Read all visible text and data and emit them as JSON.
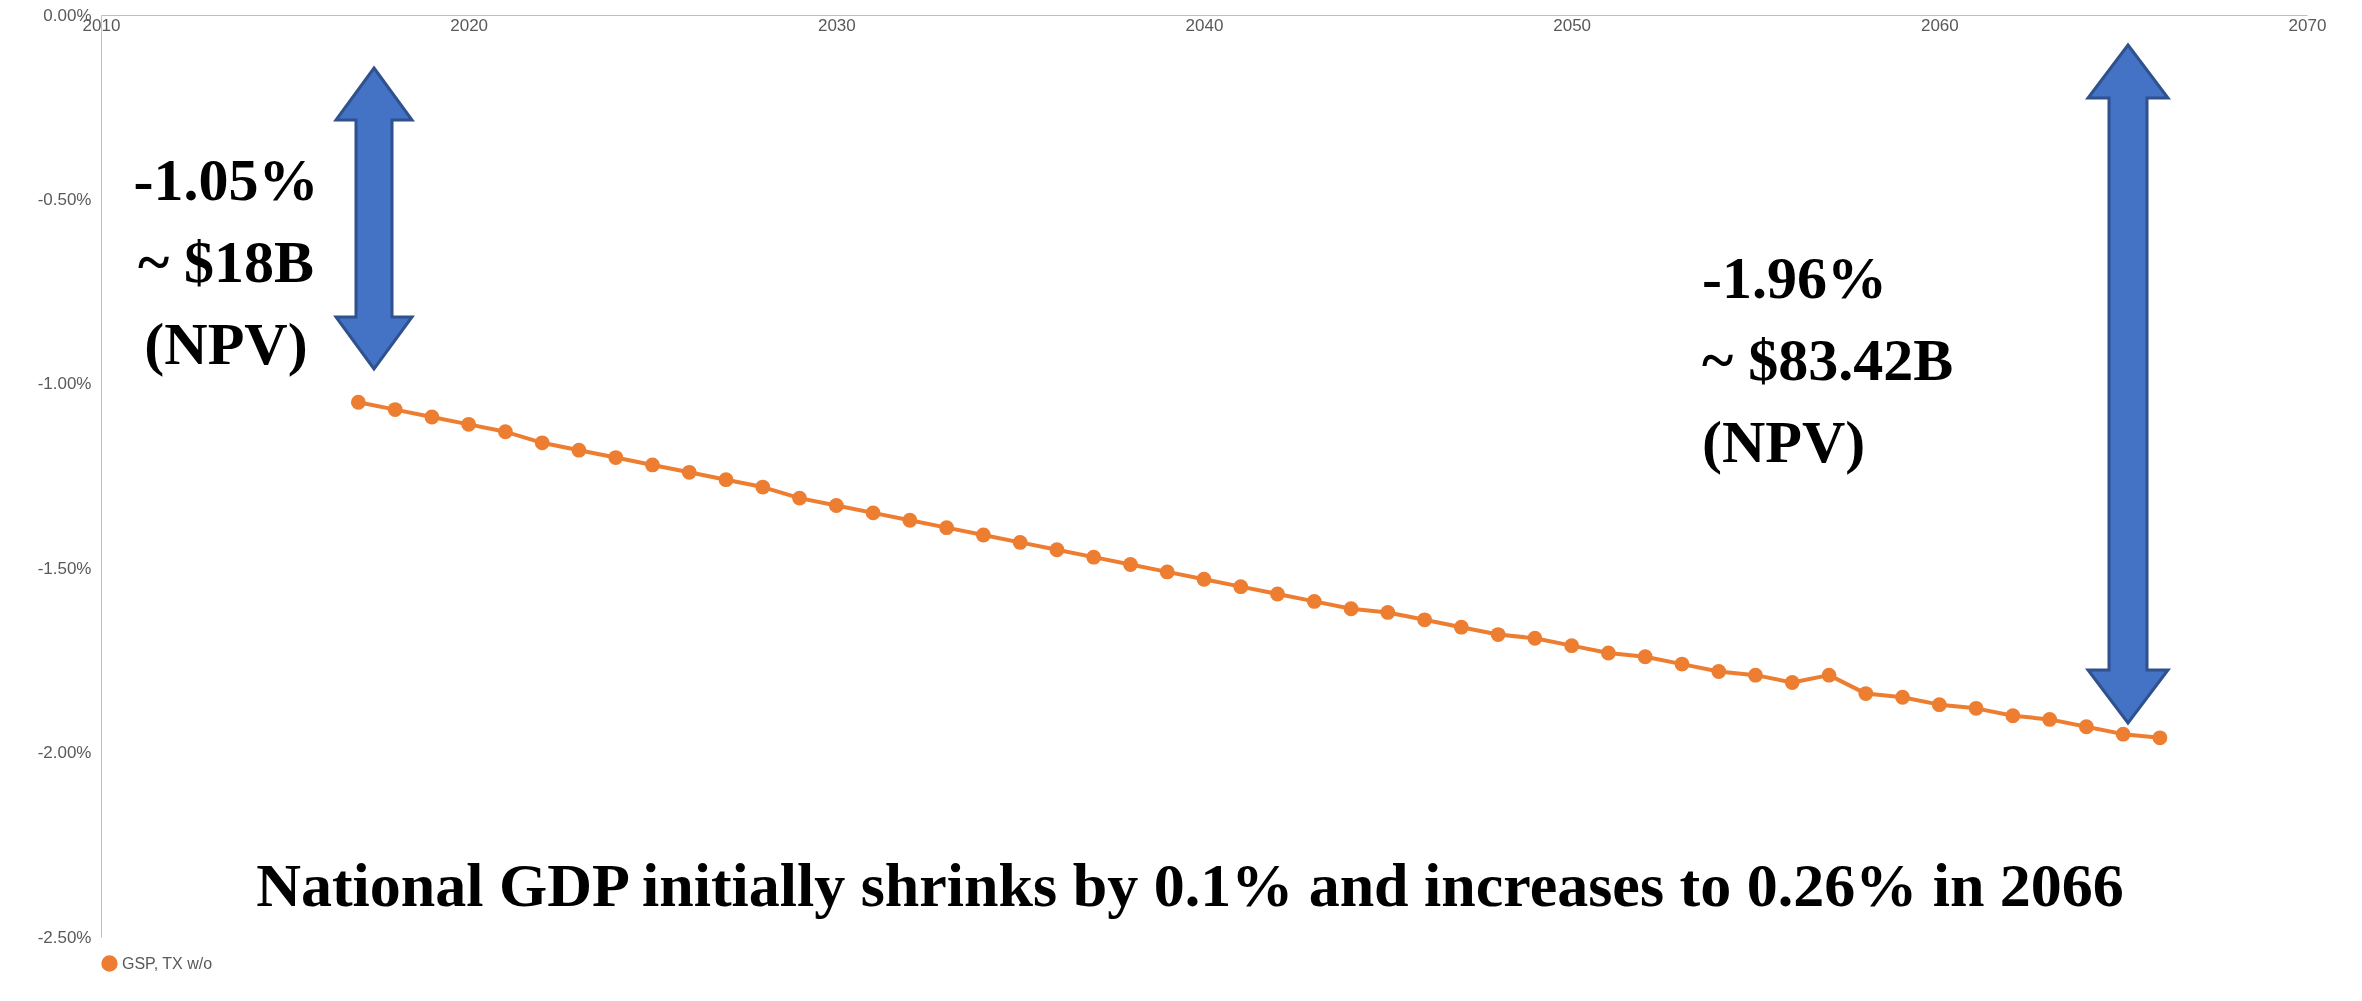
{
  "chart_data": {
    "type": "line",
    "x": [
      2017,
      2018,
      2019,
      2020,
      2021,
      2022,
      2023,
      2024,
      2025,
      2026,
      2027,
      2028,
      2029,
      2030,
      2031,
      2032,
      2033,
      2034,
      2035,
      2036,
      2037,
      2038,
      2039,
      2040,
      2041,
      2042,
      2043,
      2044,
      2045,
      2046,
      2047,
      2048,
      2049,
      2050,
      2051,
      2052,
      2053,
      2054,
      2055,
      2056,
      2057,
      2058,
      2059,
      2060,
      2061,
      2062,
      2063,
      2064,
      2065,
      2066
    ],
    "series": [
      {
        "name": "GSP, TX w/o",
        "color": "#ed7d31",
        "values": [
          -1.05,
          -1.07,
          -1.09,
          -1.11,
          -1.13,
          -1.16,
          -1.18,
          -1.2,
          -1.22,
          -1.24,
          -1.26,
          -1.28,
          -1.31,
          -1.33,
          -1.35,
          -1.37,
          -1.39,
          -1.41,
          -1.43,
          -1.45,
          -1.47,
          -1.49,
          -1.51,
          -1.53,
          -1.55,
          -1.57,
          -1.59,
          -1.61,
          -1.62,
          -1.64,
          -1.66,
          -1.68,
          -1.69,
          -1.71,
          -1.73,
          -1.74,
          -1.76,
          -1.78,
          -1.79,
          -1.81,
          -1.79,
          -1.84,
          -1.85,
          -1.87,
          -1.88,
          -1.9,
          -1.91,
          -1.93,
          -1.95,
          -1.96
        ]
      }
    ],
    "xlim": [
      2010,
      2070
    ],
    "xticks": [
      2010,
      2020,
      2030,
      2040,
      2050,
      2060,
      2070
    ],
    "ylim": [
      -2.5,
      0
    ],
    "yticks": [
      {
        "value": 0,
        "label": "0.00%"
      },
      {
        "value": -0.5,
        "label": "-0.50%"
      },
      {
        "value": -1,
        "label": "-1.00%"
      },
      {
        "value": -1.5,
        "label": "-1.50%"
      },
      {
        "value": -2,
        "label": "-2.00%"
      },
      {
        "value": -2.5,
        "label": "-2.50%"
      }
    ],
    "marker": "circle",
    "grid": false,
    "legend": "bottom",
    "annotations": [
      "-1.05%\n~ $18B\n(NPV)",
      "-1.96%\n~ $83.42B\n (NPV)",
      "National GDP initially shrinks by 0.1% and increases to 0.26% in 2066"
    ]
  }
}
